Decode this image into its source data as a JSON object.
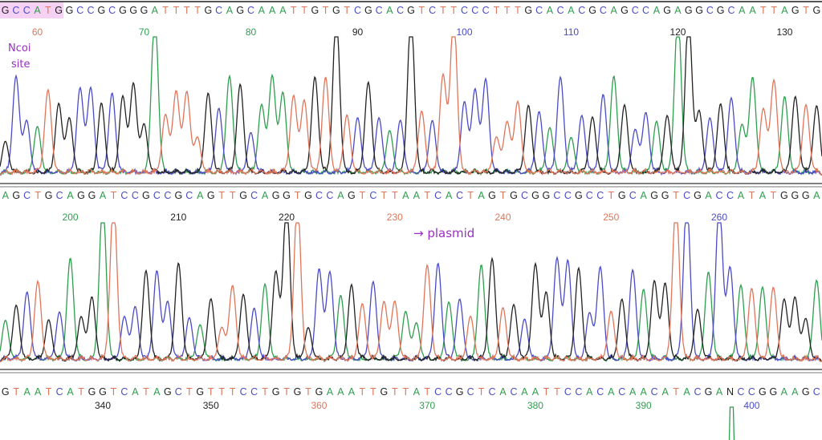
{
  "chart_data": {
    "type": "line",
    "title": "",
    "xlabel": "",
    "ylabel": "",
    "base_colors": {
      "A": "#2f9e4f",
      "C": "#4b4bc6",
      "G": "#222222",
      "T": "#e0755a",
      "N": "#222222"
    },
    "rows": [
      {
        "sequence": "GCCATGGCCGCGGGATTTTGCAGCAAATTGTGTCGCACGTCTTCCCTTTGCACACGCAGCCAGAGGCGCAATTAGTG",
        "start_position": 57,
        "ticks": [
          {
            "label": "60",
            "color": "#e0755a"
          },
          {
            "label": "70",
            "color": "#2f9e4f"
          },
          {
            "label": "80",
            "color": "#2f9e4f"
          },
          {
            "label": "90",
            "color": "#222222"
          },
          {
            "label": "100",
            "color": "#4b4bc6"
          },
          {
            "label": "110",
            "color": "#4b4bc6"
          },
          {
            "label": "120",
            "color": "#222222"
          },
          {
            "label": "130",
            "color": "#222222"
          }
        ],
        "tall_peaks": [
          14,
          31,
          38,
          42,
          63,
          64
        ]
      },
      {
        "sequence": "AGCTGCAGGATCCGCCGCAGTTGCAGGTGCCAGTCTTAATCACTAGTGCGGCCGCCTGCAGGTCGACCATATGGGA",
        "start_position": 194,
        "ticks": [
          {
            "label": "200",
            "color": "#2f9e4f"
          },
          {
            "label": "210",
            "color": "#222222"
          },
          {
            "label": "220",
            "color": "#222222"
          },
          {
            "label": "230",
            "color": "#e0755a"
          },
          {
            "label": "240",
            "color": "#e0755a"
          },
          {
            "label": "250",
            "color": "#e0755a"
          },
          {
            "label": "260",
            "color": "#4b4bc6"
          }
        ],
        "tall_peaks": [
          9,
          10,
          26,
          27,
          62,
          63,
          66
        ]
      },
      {
        "sequence": "GTAATCATGGTCATAGCTGTTTCCTGTGTGAAATTGTTATCCGCTCACAATTCCACACAACATACGANCCGGAAGC",
        "start_position": 331,
        "ticks": [
          {
            "label": "340",
            "color": "#222222"
          },
          {
            "label": "350",
            "color": "#222222"
          },
          {
            "label": "360",
            "color": "#e0755a"
          },
          {
            "label": "370",
            "color": "#2f9e4f"
          },
          {
            "label": "380",
            "color": "#2f9e4f"
          },
          {
            "label": "390",
            "color": "#2f9e4f"
          },
          {
            "label": "400",
            "color": "#4b4bc6"
          }
        ],
        "tall_peaks": [
          67
        ]
      }
    ]
  },
  "annotations": {
    "nco_site_line1": "Ncoi",
    "nco_site_line2": "site",
    "plasmid": "→ plasmid"
  }
}
